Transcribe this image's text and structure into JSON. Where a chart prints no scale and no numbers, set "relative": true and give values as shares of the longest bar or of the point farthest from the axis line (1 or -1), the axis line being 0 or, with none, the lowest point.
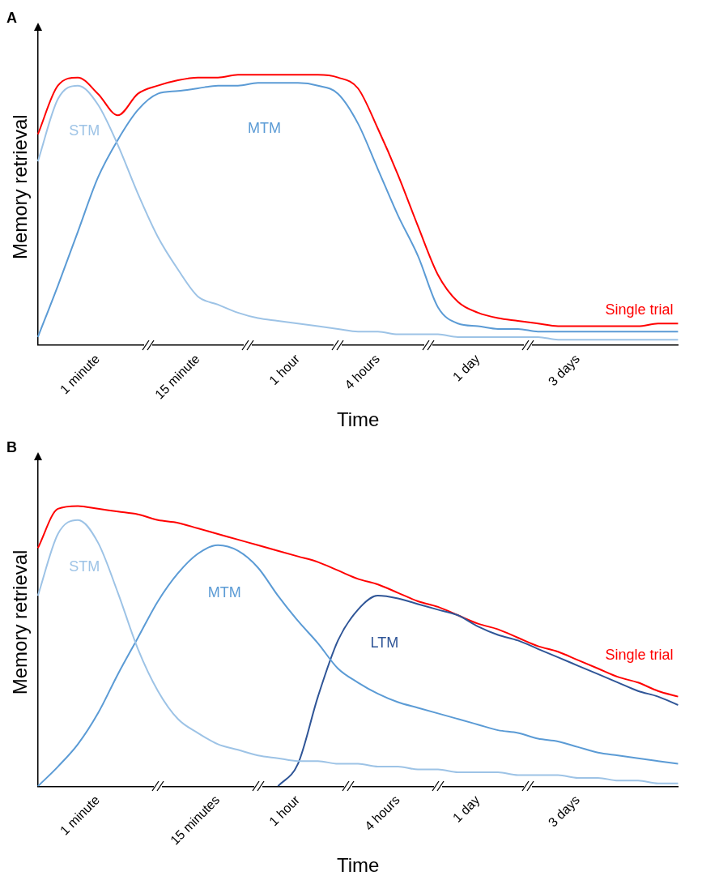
{
  "chart_data": [
    {
      "type": "line",
      "title": "A",
      "xlabel": "Time",
      "ylabel": "Memory retrieval",
      "relative": true,
      "categories": [
        null,
        null,
        null,
        "1 minute",
        null,
        null,
        null,
        null,
        "15 minute",
        null,
        null,
        null,
        null,
        "1 hour",
        null,
        null,
        null,
        "4 hours",
        null,
        null,
        null,
        null,
        "1 day",
        null,
        null,
        null,
        null,
        "3 days",
        null,
        null,
        null,
        null,
        null
      ],
      "grid": false,
      "legend": false,
      "marker": "none",
      "line_style": "solid",
      "series": [
        {
          "name": "STM",
          "color": "#9dc3e6",
          "values": [
            0.68,
            0.91,
            0.96,
            0.89,
            0.74,
            0.56,
            0.4,
            0.28,
            0.18,
            0.15,
            0.12,
            0.1,
            0.09,
            0.08,
            0.07,
            0.06,
            0.05,
            0.05,
            0.04,
            0.04,
            0.04,
            0.03,
            0.03,
            0.03,
            0.03,
            0.03,
            0.02,
            0.02,
            0.02,
            0.02,
            0.02,
            0.02,
            0.02
          ]
        },
        {
          "name": "MTM",
          "color": "#5b9bd5",
          "values": [
            0.03,
            0.22,
            0.42,
            0.62,
            0.76,
            0.87,
            0.93,
            0.94,
            0.95,
            0.96,
            0.96,
            0.97,
            0.97,
            0.97,
            0.96,
            0.93,
            0.82,
            0.65,
            0.48,
            0.33,
            0.14,
            0.08,
            0.07,
            0.06,
            0.06,
            0.05,
            0.05,
            0.05,
            0.05,
            0.05,
            0.05,
            0.05,
            0.05
          ]
        },
        {
          "name": "Single trial",
          "color": "#ff0000",
          "values": [
            0.78,
            0.96,
            0.99,
            0.93,
            0.85,
            0.93,
            0.96,
            0.98,
            0.99,
            0.99,
            1.0,
            1.0,
            1.0,
            1.0,
            1.0,
            0.99,
            0.95,
            0.8,
            0.63,
            0.44,
            0.26,
            0.16,
            0.12,
            0.1,
            0.09,
            0.08,
            0.07,
            0.07,
            0.07,
            0.07,
            0.07,
            0.08,
            0.08
          ]
        }
      ]
    },
    {
      "type": "line",
      "title": "B",
      "xlabel": "Time",
      "ylabel": "Memory retrieval",
      "relative": true,
      "categories": [
        null,
        null,
        null,
        "1 minute",
        null,
        null,
        null,
        null,
        null,
        "15 minutes",
        null,
        null,
        null,
        "1 hour",
        null,
        null,
        null,
        null,
        "4 hours",
        null,
        null,
        null,
        "1 day",
        null,
        null,
        null,
        null,
        "3 days",
        null,
        null,
        null,
        null,
        null
      ],
      "grid": false,
      "legend": false,
      "marker": "none",
      "line_style": "solid",
      "series": [
        {
          "name": "STM",
          "color": "#9dc3e6",
          "values": [
            0.68,
            0.9,
            0.95,
            0.87,
            0.69,
            0.49,
            0.34,
            0.24,
            0.19,
            0.15,
            0.13,
            0.11,
            0.1,
            0.09,
            0.09,
            0.08,
            0.08,
            0.07,
            0.07,
            0.06,
            0.06,
            0.05,
            0.05,
            0.05,
            0.04,
            0.04,
            0.04,
            0.03,
            0.03,
            0.02,
            0.02,
            0.01,
            0.01
          ]
        },
        {
          "name": "MTM",
          "color": "#5b9bd5",
          "values": [
            0,
            0.07,
            0.15,
            0.26,
            0.4,
            0.53,
            0.66,
            0.76,
            0.83,
            0.86,
            0.84,
            0.78,
            0.68,
            0.59,
            0.51,
            0.42,
            0.37,
            0.33,
            0.3,
            0.28,
            0.26,
            0.24,
            0.22,
            0.2,
            0.19,
            0.17,
            0.16,
            0.14,
            0.12,
            0.11,
            0.1,
            0.09,
            0.08
          ]
        },
        {
          "name": "LTM",
          "color": "#2f5597",
          "values": [
            null,
            null,
            null,
            null,
            null,
            null,
            null,
            null,
            null,
            null,
            null,
            null,
            0,
            0.08,
            0.32,
            0.52,
            0.63,
            0.68,
            0.67,
            0.65,
            0.63,
            0.61,
            0.57,
            0.54,
            0.52,
            0.49,
            0.46,
            0.43,
            0.4,
            0.37,
            0.34,
            0.32,
            0.29
          ]
        },
        {
          "name": "Single trial",
          "color": "#ff0000",
          "values": [
            0.85,
            0.99,
            1.0,
            0.99,
            0.98,
            0.97,
            0.95,
            0.94,
            0.92,
            0.9,
            0.88,
            0.86,
            0.84,
            0.82,
            0.8,
            0.77,
            0.74,
            0.72,
            0.69,
            0.66,
            0.64,
            0.61,
            0.58,
            0.56,
            0.53,
            0.5,
            0.48,
            0.45,
            0.42,
            0.39,
            0.37,
            0.34,
            0.32
          ]
        }
      ]
    }
  ]
}
